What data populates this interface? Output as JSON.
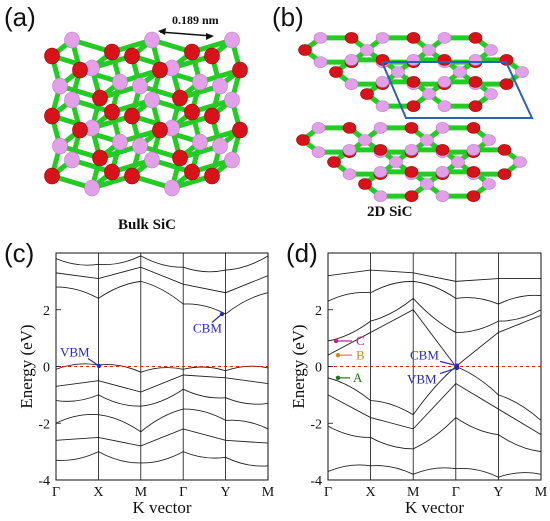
{
  "panels": {
    "a": {
      "letter": "(a)",
      "caption": "Bulk SiC",
      "bond_length": "0.189 nm"
    },
    "b": {
      "letter": "(b)",
      "caption": "2D SiC"
    },
    "c": {
      "letter": "(c)"
    },
    "d": {
      "letter": "(d)"
    }
  },
  "colors": {
    "carbon": "#d8121a",
    "silicon": "#e2a0e8",
    "bond": "#22cc22",
    "fermi": "#e02020",
    "label_blue": "#2a2ab8",
    "label_orange": "#d08a1a",
    "label_green": "#1a7a1a",
    "label_pink": "#c01a8a",
    "cell_outline": "#2a62b8"
  },
  "chart_data": [
    {
      "type": "line",
      "panel": "(c)",
      "xlabel": "K vector",
      "ylabel": "Energy (eV)",
      "ylim": [
        -4,
        4
      ],
      "yticks": [
        "2",
        "0",
        "-2",
        "-4"
      ],
      "x_ticks": [
        "Γ",
        "X",
        "M",
        "Γ",
        "Y",
        "M"
      ],
      "fermi_level": 0,
      "annotations": [
        {
          "text": "VBM",
          "x": "X",
          "y": 0
        },
        {
          "text": "CBM",
          "x": "between Γ and Y",
          "y": 1.85
        }
      ],
      "series": [
        {
          "values": [
            -0.1,
            0.05,
            -0.2,
            -0.1,
            -0.15,
            -0.05
          ]
        },
        {
          "values": [
            -0.7,
            -0.5,
            -0.9,
            -0.3,
            -0.4,
            -0.6
          ]
        },
        {
          "values": [
            -1.2,
            -1.0,
            -1.4,
            -0.8,
            -1.1,
            -1.3
          ]
        },
        {
          "values": [
            -2.0,
            -1.7,
            -2.3,
            -1.5,
            -1.9,
            -2.2
          ]
        },
        {
          "values": [
            -2.6,
            -2.5,
            -2.8,
            -2.2,
            -2.6,
            -2.7
          ]
        },
        {
          "values": [
            -3.3,
            -3.0,
            -3.4,
            -3.0,
            -3.2,
            -3.5
          ]
        },
        {
          "values": [
            2.8,
            2.4,
            3.0,
            2.2,
            1.85,
            2.6
          ]
        },
        {
          "values": [
            3.3,
            3.1,
            3.5,
            2.9,
            2.6,
            3.2
          ]
        },
        {
          "values": [
            3.8,
            3.6,
            3.9,
            3.5,
            3.4,
            3.9
          ]
        }
      ]
    },
    {
      "type": "line",
      "panel": "(d)",
      "xlabel": "K vector",
      "ylabel": "Energy (eV)",
      "ylim": [
        -4,
        4
      ],
      "yticks": [
        "2",
        "0",
        "-2",
        "-4"
      ],
      "x_ticks": [
        "Γ",
        "X",
        "M",
        "Γ",
        "Y",
        "M"
      ],
      "fermi_level": 0,
      "annotations": [
        {
          "text": "C",
          "x": "Γ",
          "y": 0.9
        },
        {
          "text": "B",
          "x": "Γ",
          "y": 0.4
        },
        {
          "text": "A",
          "x": "Γ",
          "y": -0.4
        },
        {
          "text": "CBM",
          "x": "Γ",
          "y": 0.05
        },
        {
          "text": "VBM",
          "x": "Γ",
          "y": -0.05
        }
      ],
      "series": [
        {
          "values": [
            -0.4,
            -1.2,
            -1.7,
            0.0,
            -1.0,
            -1.9
          ]
        },
        {
          "values": [
            -1.0,
            -1.8,
            -2.2,
            -0.6,
            -1.5,
            -2.4
          ]
        },
        {
          "values": [
            -2.1,
            -2.5,
            -2.9,
            -1.8,
            -2.4,
            -3.0
          ]
        },
        {
          "values": [
            -3.7,
            -3.5,
            -3.8,
            -3.6,
            -3.9,
            -3.8
          ]
        },
        {
          "values": [
            0.4,
            1.2,
            2.0,
            0.0,
            1.2,
            1.8
          ]
        },
        {
          "values": [
            0.9,
            1.6,
            2.4,
            1.2,
            1.6,
            2.0
          ]
        },
        {
          "values": [
            2.3,
            2.6,
            3.0,
            2.4,
            2.2,
            2.5
          ]
        },
        {
          "values": [
            3.2,
            3.4,
            3.3,
            3.0,
            3.1,
            3.1
          ]
        }
      ]
    }
  ]
}
